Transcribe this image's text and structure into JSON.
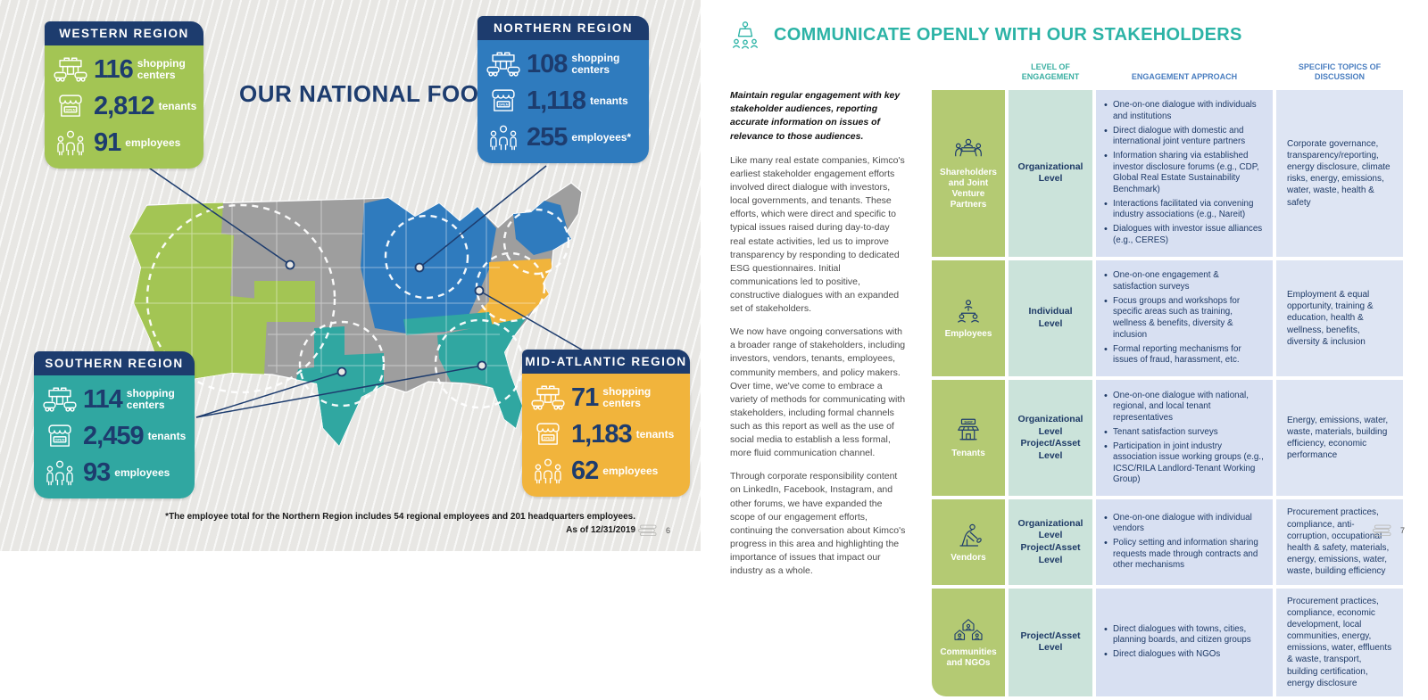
{
  "left_page": {
    "title": "OUR NATIONAL FOOTPRINT",
    "regions": [
      {
        "name": "WESTERN REGION",
        "color": "#a3c554",
        "stats": [
          {
            "icon": "shopping-centers-icon",
            "value": "116",
            "label": "shopping centers"
          },
          {
            "icon": "storefront-icon",
            "value": "2,812",
            "label": "tenants"
          },
          {
            "icon": "people-icon",
            "value": "91",
            "label": "employees"
          }
        ]
      },
      {
        "name": "NORTHERN REGION",
        "color": "#2f7bbe",
        "stats": [
          {
            "icon": "shopping-centers-icon",
            "value": "108",
            "label": "shopping centers"
          },
          {
            "icon": "storefront-icon",
            "value": "1,118",
            "label": "tenants"
          },
          {
            "icon": "people-icon",
            "value": "255",
            "label": "employees*"
          }
        ]
      },
      {
        "name": "SOUTHERN REGION",
        "color": "#30a7a1",
        "stats": [
          {
            "icon": "shopping-centers-icon",
            "value": "114",
            "label": "shopping centers"
          },
          {
            "icon": "storefront-icon",
            "value": "2,459",
            "label": "tenants"
          },
          {
            "icon": "people-icon",
            "value": "93",
            "label": "employees"
          }
        ]
      },
      {
        "name": "MID-ATLANTIC REGION",
        "color": "#f1b43c",
        "stats": [
          {
            "icon": "shopping-centers-icon",
            "value": "71",
            "label": "shopping centers"
          },
          {
            "icon": "storefront-icon",
            "value": "1,183",
            "label": "tenants"
          },
          {
            "icon": "people-icon",
            "value": "62",
            "label": "employees"
          }
        ]
      }
    ],
    "footnote_line1": "*The employee total for the Northern Region includes 54 regional employees and 201 headquarters employees.",
    "footnote_line2": "As of 12/31/2019",
    "page_number": "6"
  },
  "right_page": {
    "title": "COMMUNICATE OPENLY WITH OUR STAKEHOLDERS",
    "intro_lead": "Maintain regular engagement with key stakeholder audiences, reporting accurate information on issues of relevance to those audiences.",
    "paragraphs": [
      "Like many real estate companies, Kimco's earliest stakeholder engagement efforts involved direct dialogue with investors, local governments, and tenants. These efforts, which were direct and specific to typical issues raised during day-to-day real estate activities, led us to improve transparency by responding to dedicated ESG questionnaires. Initial communications led to positive, constructive dialogues with an expanded set of stakeholders.",
      "We now have ongoing conversations with a broader range of stakeholders, including investors, vendors, tenants, employees, community members, and policy makers. Over time, we've come to embrace a variety of methods for communicating with stakeholders, including formal channels such as this report as well as the use of social media to establish a less formal, more fluid communication channel.",
      "Through corporate responsibility content on LinkedIn, Facebook, Instagram, and other forums, we have expanded the scope of our engagement efforts, continuing the conversation about Kimco's progress in this area and highlighting the importance of issues that impact our industry as a whole."
    ],
    "table": {
      "headers": [
        "LEVEL OF ENGAGEMENT",
        "ENGAGEMENT APPROACH",
        "SPECIFIC TOPICS OF DISCUSSION"
      ],
      "rows": [
        {
          "stakeholder": "Shareholders and Joint Venture Partners",
          "icon": "meeting-icon",
          "level": "Organizational Level",
          "approach": [
            "One-on-one dialogue with individuals and institutions",
            "Direct dialogue with domestic and international joint venture partners",
            "Information sharing via established investor disclosure forums (e.g., CDP, Global Real Estate Sustainability Benchmark)",
            "Interactions facilitated via convening industry associations (e.g., Nareit)",
            "Dialogues with investor issue alliances (e.g., CERES)"
          ],
          "topics": "Corporate governance, transparency/reporting, energy disclosure, climate risks, energy, emissions, water, waste, health & safety"
        },
        {
          "stakeholder": "Employees",
          "icon": "org-chart-icon",
          "level": "Individual Level",
          "approach": [
            "One-on-one engagement & satisfaction surveys",
            "Focus groups and workshops for specific areas such as training, wellness & benefits, diversity & inclusion",
            "Formal reporting mechanisms for issues of fraud, harassment, etc."
          ],
          "topics": "Employment & equal opportunity, training & education, health & wellness, benefits, diversity & inclusion"
        },
        {
          "stakeholder": "Tenants",
          "icon": "shop-icon",
          "level": "Organizational Level Project/Asset Level",
          "approach": [
            "One-on-one dialogue with national, regional, and local tenant representatives",
            "Tenant satisfaction surveys",
            "Participation in joint industry association issue working groups (e.g., ICSC/RILA Landlord-Tenant Working Group)"
          ],
          "topics": "Energy, emissions, water, waste, materials, building efficiency, economic performance"
        },
        {
          "stakeholder": "Vendors",
          "icon": "worker-icon",
          "level": "Organizational Level Project/Asset Level",
          "approach": [
            "One-on-one dialogue with individual vendors",
            "Policy setting and information sharing requests made through contracts and other mechanisms"
          ],
          "topics": "Procurement practices, compliance, anti-corruption, occupational health & safety, materials, energy, emissions, water, waste, building efficiency"
        },
        {
          "stakeholder": "Communities and NGOs",
          "icon": "community-icon",
          "level": "Project/Asset Level",
          "approach": [
            "Direct dialogues with towns, cities, planning boards, and citizen groups",
            "Direct dialogues with NGOs"
          ],
          "topics": "Procurement practices, compliance, economic development, local communities, energy, emissions, water, effluents & waste, transport, building certification, energy disclosure"
        }
      ]
    },
    "page_number": "7"
  }
}
